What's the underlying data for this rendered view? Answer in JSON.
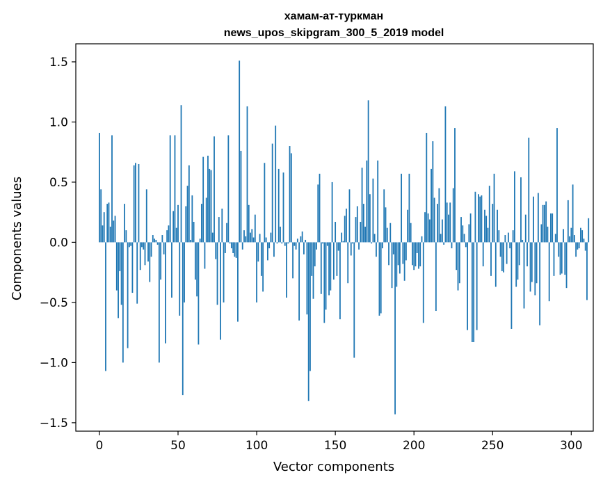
{
  "chart_data": {
    "type": "bar",
    "title_line1": "хамам-ат-туркман",
    "title_line2": "news_upos_skipgram_300_5_2019 model",
    "xlabel": "Vector components",
    "ylabel": "Components values",
    "xlim": [
      -15,
      314
    ],
    "ylim": [
      -1.57,
      1.65
    ],
    "xticks": [
      0,
      50,
      100,
      150,
      200,
      250,
      300
    ],
    "yticks": [
      -1.5,
      -1.0,
      -0.5,
      0.0,
      0.5,
      1.0,
      1.5
    ],
    "xtick_labels": [
      "0",
      "50",
      "100",
      "150",
      "200",
      "250",
      "300"
    ],
    "ytick_labels": [
      "−1.5",
      "−1.0",
      "−0.5",
      "0.0",
      "0.5",
      "1.0",
      "1.5"
    ],
    "bar_color": "#1f77b4",
    "grid": false,
    "values": [
      0.91,
      0.44,
      0.14,
      0.25,
      -1.07,
      0.32,
      0.33,
      0.13,
      0.89,
      0.18,
      0.22,
      -0.4,
      -0.63,
      -0.24,
      -0.52,
      -1.0,
      0.32,
      0.1,
      -0.88,
      -0.04,
      -0.03,
      -0.42,
      0.64,
      0.66,
      -0.51,
      0.65,
      -0.23,
      -0.04,
      -0.06,
      -0.19,
      0.44,
      -0.16,
      -0.33,
      -0.12,
      0.06,
      0.03,
      0.02,
      -0.02,
      -1.0,
      -0.31,
      0.06,
      -0.1,
      -0.84,
      0.1,
      0.14,
      0.89,
      -0.46,
      0.26,
      0.89,
      0.12,
      0.31,
      -0.61,
      1.14,
      -1.27,
      -0.5,
      0.3,
      0.47,
      0.64,
      0.02,
      0.39,
      0.17,
      -0.31,
      -0.45,
      -0.85,
      0.03,
      0.32,
      0.71,
      -0.22,
      0.37,
      0.72,
      0.61,
      0.6,
      0.08,
      0.88,
      -0.14,
      -0.52,
      0.21,
      -0.81,
      0.28,
      -0.5,
      -0.09,
      0.16,
      0.89,
      -0.01,
      -0.05,
      -0.09,
      -0.12,
      -0.13,
      -0.66,
      1.51,
      0.76,
      -0.06,
      0.1,
      0.05,
      1.13,
      0.31,
      0.08,
      0.11,
      0.04,
      0.23,
      -0.5,
      -0.16,
      0.07,
      -0.28,
      -0.41,
      0.66,
      0.04,
      -0.15,
      -0.05,
      0.08,
      0.82,
      -0.12,
      0.97,
      -0.01,
      0.61,
      0.13,
      -0.01,
      0.58,
      -0.03,
      -0.46,
      -0.01,
      0.8,
      0.74,
      -0.3,
      -0.03,
      -0.06,
      0.03,
      -0.65,
      0.05,
      0.09,
      -0.1,
      0.02,
      -0.6,
      -1.32,
      -1.07,
      -0.28,
      -0.47,
      -0.2,
      -0.06,
      0.48,
      0.57,
      -0.43,
      -0.01,
      -0.67,
      -0.56,
      -0.03,
      -0.44,
      -0.4,
      0.5,
      -0.31,
      0.17,
      -0.28,
      -0.07,
      -0.64,
      0.08,
      0.01,
      0.22,
      0.28,
      -0.34,
      0.44,
      -0.11,
      -0.01,
      -0.96,
      0.21,
      0.3,
      -0.06,
      0.17,
      0.62,
      0.32,
      0.13,
      0.68,
      1.18,
      0.4,
      -0.01,
      0.53,
      0.07,
      -0.12,
      0.68,
      -0.61,
      -0.59,
      -0.05,
      0.44,
      0.29,
      0.12,
      -0.19,
      0.16,
      -0.38,
      -0.1,
      -1.43,
      -0.37,
      -0.19,
      -0.26,
      0.57,
      -0.18,
      -0.32,
      -0.15,
      0.27,
      0.57,
      0.16,
      -0.19,
      -0.23,
      -0.2,
      -0.09,
      -0.22,
      -0.2,
      0.05,
      -0.67,
      0.25,
      0.91,
      0.24,
      0.19,
      0.61,
      0.84,
      0.37,
      -0.57,
      0.32,
      0.45,
      0.07,
      0.19,
      -0.02,
      1.13,
      0.33,
      0.23,
      0.33,
      -0.05,
      0.45,
      0.95,
      -0.23,
      -0.4,
      -0.34,
      0.21,
      0.14,
      0.07,
      -0.04,
      -0.73,
      0.15,
      0.24,
      -0.83,
      -0.83,
      0.42,
      -0.73,
      0.4,
      0.38,
      0.39,
      -0.2,
      0.27,
      0.22,
      0.12,
      0.47,
      -0.28,
      0.32,
      0.57,
      -0.37,
      0.27,
      0.1,
      -0.12,
      -0.24,
      -0.25,
      0.06,
      -0.18,
      0.08,
      -0.05,
      -0.72,
      0.1,
      0.59,
      -0.37,
      -0.31,
      -0.19,
      0.54,
      0.02,
      -0.55,
      0.23,
      -0.2,
      0.87,
      -0.41,
      -0.33,
      0.38,
      -0.44,
      -0.34,
      0.41,
      -0.69,
      0.15,
      0.31,
      0.31,
      0.34,
      0.13,
      -0.49,
      0.24,
      0.24,
      -0.28,
      0.07,
      0.95,
      -0.12,
      -0.27,
      -0.26,
      0.11,
      -0.27,
      -0.38,
      0.35,
      0.05,
      0.12,
      0.48,
      0.06,
      -0.12,
      -0.06,
      -0.05,
      0.12,
      0.1,
      0.03,
      -0.07,
      -0.48,
      0.2
    ]
  }
}
